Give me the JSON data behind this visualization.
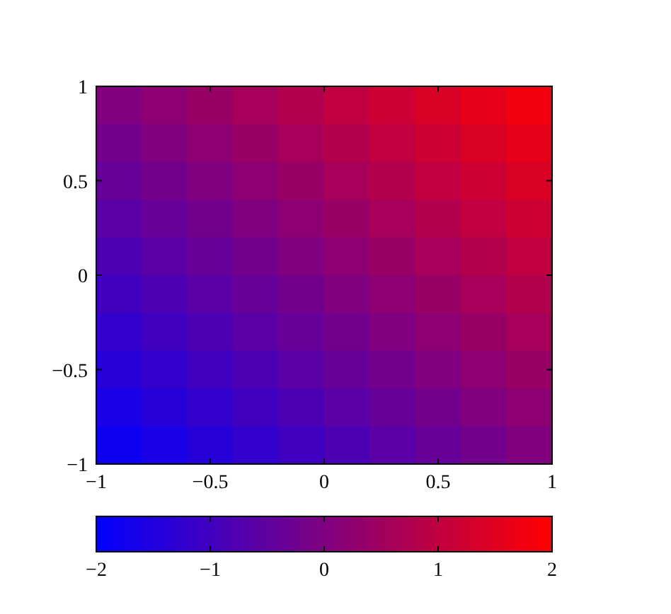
{
  "chart_data": {
    "type": "heatmap",
    "x": [
      -0.9,
      -0.7,
      -0.5,
      -0.3,
      -0.1,
      0.1,
      0.3,
      0.5,
      0.7,
      0.9
    ],
    "y": [
      0.9,
      0.7,
      0.5,
      0.3,
      0.1,
      -0.1,
      -0.3,
      -0.5,
      -0.7,
      -0.9
    ],
    "cells": [
      [
        0,
        0.2,
        0.4,
        0.6,
        0.8,
        1,
        1.2,
        1.4,
        1.6,
        1.8
      ],
      [
        -0.2,
        0,
        0.2,
        0.4,
        0.6,
        0.8,
        1,
        1.2,
        1.4,
        1.6
      ],
      [
        -0.4,
        -0.2,
        0,
        0.2,
        0.4,
        0.6,
        0.8,
        1,
        1.2,
        1.4
      ],
      [
        -0.6,
        -0.4,
        -0.2,
        0,
        0.2,
        0.4,
        0.6,
        0.8,
        1,
        1.2
      ],
      [
        -0.8,
        -0.6,
        -0.4,
        -0.2,
        0,
        0.2,
        0.4,
        0.6,
        0.8,
        1
      ],
      [
        -1,
        -0.8,
        -0.6,
        -0.4,
        -0.2,
        0,
        0.2,
        0.4,
        0.6,
        0.8
      ],
      [
        -1.2,
        -1,
        -0.8,
        -0.6,
        -0.4,
        -0.2,
        0,
        0.2,
        0.4,
        0.6
      ],
      [
        -1.4,
        -1.2,
        -1,
        -0.8,
        -0.6,
        -0.4,
        -0.2,
        0,
        0.2,
        0.4
      ],
      [
        -1.6,
        -1.4,
        -1.2,
        -1,
        -0.8,
        -0.6,
        -0.4,
        -0.2,
        0,
        0.2
      ],
      [
        -1.8,
        -1.6,
        -1.4,
        -1.2,
        -1,
        -0.8,
        -0.6,
        -0.4,
        -0.2,
        0
      ]
    ],
    "xlim": [
      -1,
      1
    ],
    "ylim": [
      -1,
      1
    ],
    "xticks": [
      {
        "value": -1,
        "label": "−1"
      },
      {
        "value": -0.5,
        "label": "−0.5"
      },
      0,
      0.5,
      1
    ],
    "yticks": [
      {
        "value": -1,
        "label": "−1"
      },
      {
        "value": -0.5,
        "label": "−0.5"
      },
      0,
      0.5,
      1
    ],
    "clim": [
      -2,
      2
    ],
    "cticks": [
      {
        "value": -2,
        "label": "−2"
      },
      {
        "value": -1,
        "label": "−1"
      },
      0,
      1,
      2
    ]
  }
}
